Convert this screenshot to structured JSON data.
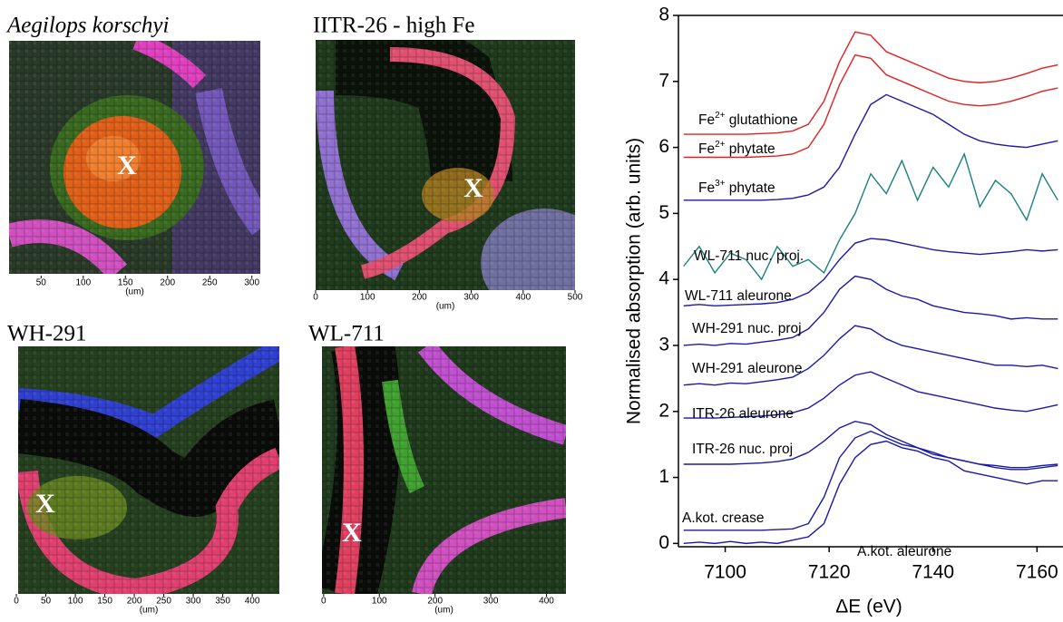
{
  "panels": [
    {
      "title": "Aegilops korschyi",
      "marker": "X",
      "xlabel": "(um)",
      "xlim": [
        12,
        310
      ],
      "xticks": [
        50,
        100,
        150,
        200,
        250,
        300
      ]
    },
    {
      "title": "IITR-26 - high Fe",
      "marker": "X",
      "xlabel": "(um)",
      "xlim": [
        0,
        500
      ],
      "xticks": [
        0,
        100,
        200,
        300,
        400,
        500
      ]
    },
    {
      "title": "WH-291",
      "marker": "X",
      "xlabel": "(um)",
      "xlim": [
        3,
        446
      ],
      "xticks": [
        0,
        50,
        100,
        150,
        200,
        250,
        300,
        350,
        400
      ]
    },
    {
      "title": "WL-711",
      "marker": "X",
      "xlabel": "(um)",
      "xlim": [
        -3,
        435
      ],
      "xticks": [
        0,
        100,
        200,
        300,
        400
      ]
    }
  ],
  "chart_data": {
    "type": "line",
    "xlabel": "ΔE (eV)",
    "ylabel": "Normalised absorption (arb. units)",
    "x": [
      7092,
      7095,
      7098,
      7101,
      7104,
      7107,
      7110,
      7113,
      7116,
      7119,
      7122,
      7125,
      7128,
      7131,
      7134,
      7137,
      7140,
      7143,
      7146,
      7149,
      7152,
      7155,
      7158,
      7161,
      7164
    ],
    "xlim": [
      7091,
      7165
    ],
    "xticks": [
      7100,
      7120,
      7140,
      7160
    ],
    "ylim": [
      -0.05,
      8
    ],
    "yticks": [
      0,
      1,
      2,
      3,
      4,
      5,
      6,
      7,
      8
    ],
    "series": [
      {
        "name": "Fe2+ glutathione",
        "color": "#e02020",
        "values": [
          6.2,
          6.2,
          6.2,
          6.2,
          6.2,
          6.21,
          6.22,
          6.25,
          6.35,
          6.7,
          7.3,
          7.75,
          7.7,
          7.45,
          7.35,
          7.25,
          7.15,
          7.05,
          7.0,
          6.98,
          7.0,
          7.05,
          7.12,
          7.2,
          7.25
        ]
      },
      {
        "name": "Fe2+ phytate",
        "color": "#e02020",
        "values": [
          5.85,
          5.85,
          5.85,
          5.85,
          5.85,
          5.86,
          5.87,
          5.9,
          6.0,
          6.35,
          6.95,
          7.4,
          7.35,
          7.1,
          7.0,
          6.9,
          6.8,
          6.7,
          6.65,
          6.63,
          6.65,
          6.7,
          6.77,
          6.85,
          6.9
        ]
      },
      {
        "name": "Fe3+ phytate",
        "color": "#1a1aa8",
        "values": [
          5.2,
          5.2,
          5.2,
          5.2,
          5.2,
          5.2,
          5.21,
          5.23,
          5.28,
          5.4,
          5.7,
          6.2,
          6.65,
          6.8,
          6.7,
          6.6,
          6.5,
          6.35,
          6.2,
          6.1,
          6.05,
          6.02,
          6.0,
          6.05,
          6.1
        ]
      },
      {
        "name": "WL-711 nuc. proj.",
        "color": "#1a8080",
        "values": [
          4.2,
          4.5,
          4.1,
          4.4,
          4.3,
          4.0,
          4.5,
          4.2,
          4.3,
          4.1,
          4.6,
          5.0,
          5.6,
          5.3,
          5.8,
          5.2,
          5.7,
          5.4,
          5.9,
          5.1,
          5.5,
          5.3,
          4.9,
          5.6,
          5.2
        ]
      },
      {
        "name": "WL-711 aleurone",
        "color": "#1a1aa8",
        "values": [
          3.6,
          3.62,
          3.6,
          3.61,
          3.62,
          3.63,
          3.65,
          3.7,
          3.8,
          4.0,
          4.3,
          4.55,
          4.62,
          4.6,
          4.55,
          4.5,
          4.45,
          4.42,
          4.4,
          4.38,
          4.4,
          4.42,
          4.45,
          4.43,
          4.45
        ]
      },
      {
        "name": "WH-291 nuc. proj",
        "color": "#1a1aa8",
        "values": [
          3.0,
          3.02,
          3.0,
          3.03,
          3.02,
          3.05,
          3.08,
          3.12,
          3.25,
          3.5,
          3.85,
          4.05,
          4.0,
          3.85,
          3.75,
          3.7,
          3.6,
          3.55,
          3.5,
          3.48,
          3.45,
          3.4,
          3.42,
          3.4,
          3.4
        ]
      },
      {
        "name": "WH-291 aleurone",
        "color": "#1a1aa8",
        "values": [
          2.4,
          2.42,
          2.4,
          2.43,
          2.42,
          2.45,
          2.48,
          2.52,
          2.65,
          2.85,
          3.1,
          3.3,
          3.25,
          3.1,
          3.0,
          2.95,
          2.9,
          2.85,
          2.8,
          2.75,
          2.7,
          2.7,
          2.68,
          2.7,
          2.65
        ]
      },
      {
        "name": "ITR-26 aleurone",
        "color": "#1a1aa8",
        "values": [
          1.9,
          1.9,
          1.9,
          1.91,
          1.92,
          1.93,
          1.95,
          1.98,
          2.05,
          2.2,
          2.4,
          2.55,
          2.6,
          2.5,
          2.4,
          2.3,
          2.25,
          2.2,
          2.15,
          2.1,
          2.05,
          2.02,
          2.0,
          2.05,
          2.1
        ]
      },
      {
        "name": "ITR-26 nuc. proj",
        "color": "#1a1aa8",
        "values": [
          1.2,
          1.2,
          1.2,
          1.2,
          1.21,
          1.22,
          1.24,
          1.28,
          1.38,
          1.55,
          1.75,
          1.85,
          1.8,
          1.65,
          1.55,
          1.45,
          1.38,
          1.3,
          1.25,
          1.2,
          1.18,
          1.15,
          1.15,
          1.18,
          1.2
        ]
      },
      {
        "name": "A.kot. crease",
        "color": "#1a1aa8",
        "values": [
          0.2,
          0.2,
          0.2,
          0.2,
          0.2,
          0.2,
          0.21,
          0.22,
          0.3,
          0.7,
          1.3,
          1.6,
          1.7,
          1.6,
          1.5,
          1.45,
          1.35,
          1.3,
          1.25,
          1.2,
          1.15,
          1.12,
          1.12,
          1.15,
          1.18
        ]
      },
      {
        "name": "A.kot. aleurone",
        "color": "#1a1aa8",
        "values": [
          0.0,
          0.02,
          0.0,
          0.03,
          0.0,
          0.02,
          0.0,
          0.05,
          0.1,
          0.3,
          0.9,
          1.3,
          1.5,
          1.55,
          1.45,
          1.4,
          1.3,
          1.25,
          1.1,
          1.05,
          1.0,
          0.95,
          0.9,
          0.95,
          0.95
        ]
      }
    ]
  }
}
